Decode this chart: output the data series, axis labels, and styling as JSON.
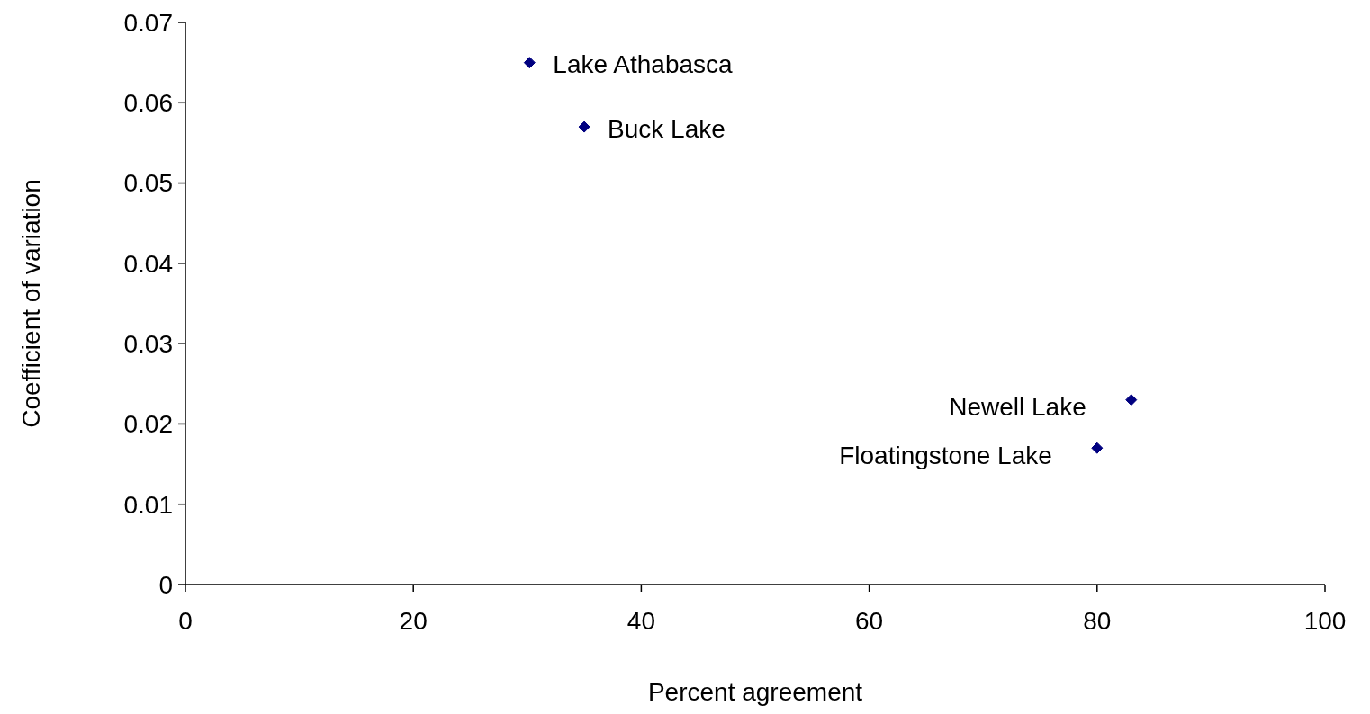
{
  "chart_data": {
    "type": "scatter",
    "xlabel": "Percent agreement",
    "ylabel": "Coefficient of variation",
    "x": [
      30.2,
      35,
      83,
      80
    ],
    "series": [
      {
        "color": "#000080",
        "values": [
          0.065,
          0.057,
          0.023,
          0.017
        ]
      }
    ],
    "xlim": [
      0,
      100
    ],
    "xticks": [
      0,
      20,
      40,
      60,
      80,
      100
    ],
    "ylim": [
      0,
      0.07
    ],
    "yticks": [
      0,
      0.01,
      0.02,
      0.03,
      0.04,
      0.05,
      0.06,
      0.07
    ],
    "marker": "diamond",
    "annotations": [
      {
        "text": "Lake Athabasca",
        "x": 30.2,
        "y": 0.065
      },
      {
        "text": "Buck Lake",
        "x": 35,
        "y": 0.057
      },
      {
        "text": "Newell Lake",
        "x": 83,
        "y": 0.023
      },
      {
        "text": "Floatingstone Lake",
        "x": 80,
        "y": 0.017
      }
    ]
  }
}
